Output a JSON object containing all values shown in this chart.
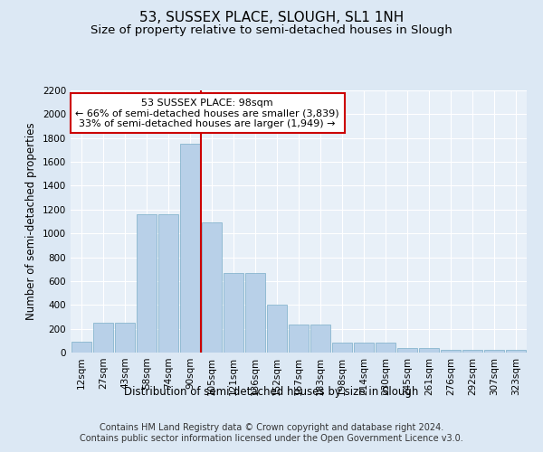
{
  "title": "53, SUSSEX PLACE, SLOUGH, SL1 1NH",
  "subtitle": "Size of property relative to semi-detached houses in Slough",
  "xlabel": "Distribution of semi-detached houses by size in Slough",
  "ylabel": "Number of semi-detached properties",
  "categories": [
    "12sqm",
    "27sqm",
    "43sqm",
    "58sqm",
    "74sqm",
    "90sqm",
    "105sqm",
    "121sqm",
    "136sqm",
    "152sqm",
    "167sqm",
    "183sqm",
    "198sqm",
    "214sqm",
    "230sqm",
    "245sqm",
    "261sqm",
    "276sqm",
    "292sqm",
    "307sqm",
    "323sqm"
  ],
  "values": [
    90,
    250,
    250,
    1160,
    1160,
    1750,
    1090,
    665,
    665,
    400,
    235,
    235,
    85,
    80,
    80,
    40,
    35,
    20,
    20,
    20,
    20
  ],
  "bar_color": "#b8d0e8",
  "bar_edge_color": "#7aaec8",
  "property_line_x": 5.5,
  "annotation_text": "53 SUSSEX PLACE: 98sqm\n← 66% of semi-detached houses are smaller (3,839)\n33% of semi-detached houses are larger (1,949) →",
  "annotation_box_color": "#ffffff",
  "annotation_box_edge_color": "#cc0000",
  "vline_color": "#cc0000",
  "ylim": [
    0,
    2200
  ],
  "yticks": [
    0,
    200,
    400,
    600,
    800,
    1000,
    1200,
    1400,
    1600,
    1800,
    2000,
    2200
  ],
  "bg_color": "#dce8f4",
  "plot_bg_color": "#e8f0f8",
  "footer": "Contains HM Land Registry data © Crown copyright and database right 2024.\nContains public sector information licensed under the Open Government Licence v3.0.",
  "title_fontsize": 11,
  "subtitle_fontsize": 9.5,
  "axis_label_fontsize": 8.5,
  "tick_fontsize": 7.5,
  "annotation_fontsize": 8,
  "footer_fontsize": 7
}
